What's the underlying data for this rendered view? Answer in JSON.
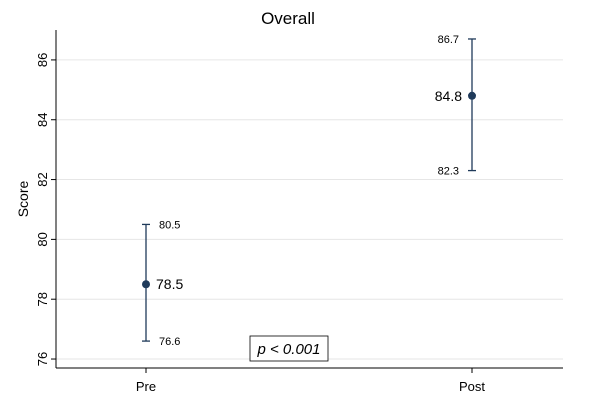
{
  "chart_data": {
    "type": "scatter",
    "title": "Overall",
    "xlabel": "",
    "ylabel": "Score",
    "categories": [
      "Pre",
      "Post"
    ],
    "series": [
      {
        "values": [
          78.5,
          84.8
        ],
        "mean_labels": [
          "78.5",
          "84.8"
        ],
        "ci_upper": [
          80.5,
          86.7
        ],
        "ci_upper_labels": [
          "80.5",
          "86.7"
        ],
        "ci_lower": [
          76.6,
          82.3
        ],
        "ci_lower_labels": [
          "76.6",
          "82.3"
        ]
      }
    ],
    "yticks": [
      76,
      78,
      80,
      82,
      84,
      86
    ],
    "ylim": [
      75.7,
      87.0
    ],
    "grid": true,
    "annotation": "p < 0.001",
    "colors": {
      "marker": "#1f3a5a",
      "grid": "#e6e6e6",
      "axis": "#000000"
    }
  }
}
